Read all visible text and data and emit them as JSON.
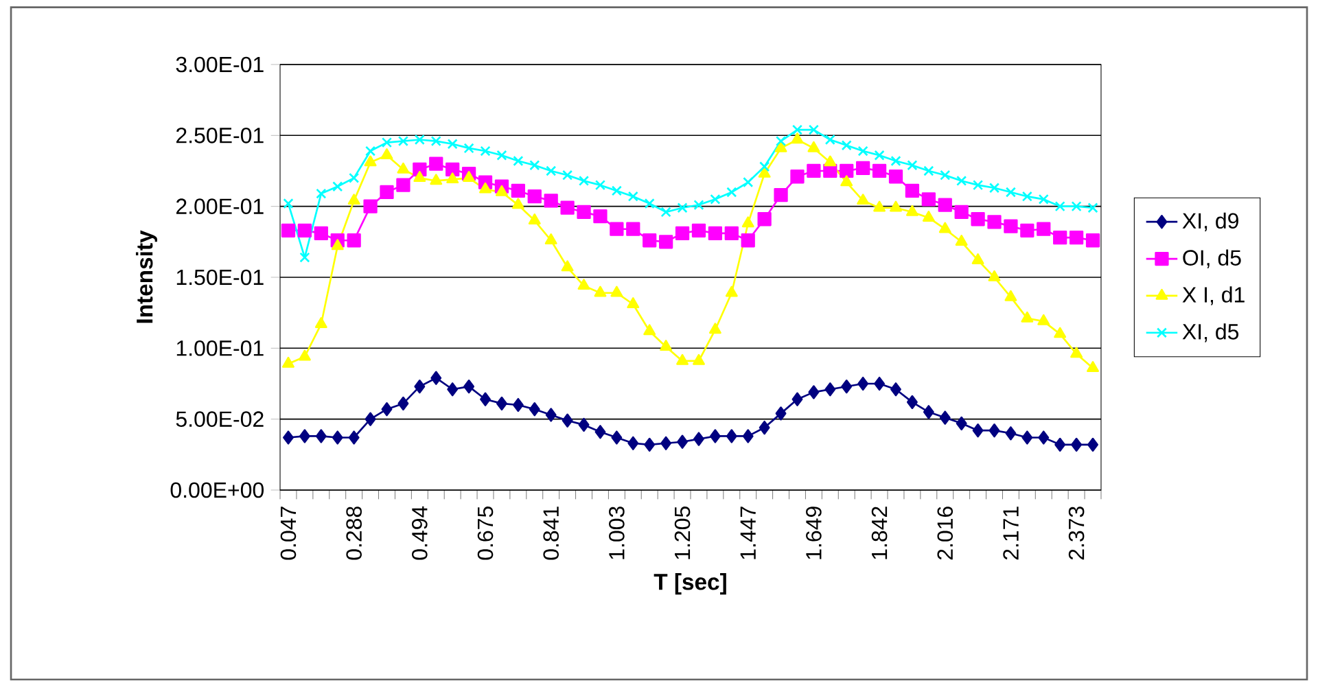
{
  "chart_data": {
    "type": "line",
    "xlabel": "T [sec]",
    "ylabel": "Intensity",
    "categories": [
      "0.047",
      null,
      null,
      null,
      "0.288",
      null,
      null,
      null,
      "0.494",
      null,
      null,
      null,
      "0.675",
      null,
      null,
      null,
      "0.841",
      null,
      null,
      null,
      "1.003",
      null,
      null,
      null,
      "1.205",
      null,
      null,
      null,
      "1.447",
      null,
      null,
      null,
      "1.649",
      null,
      null,
      null,
      "1.842",
      null,
      null,
      null,
      "2.016",
      null,
      null,
      null,
      "2.171",
      null,
      null,
      null,
      "2.373",
      null
    ],
    "series": [
      {
        "name": "XI, d9",
        "color": "#000080",
        "marker": "diamond",
        "values": [
          0.037,
          0.038,
          0.038,
          0.037,
          0.037,
          0.05,
          0.057,
          0.061,
          0.073,
          0.079,
          0.071,
          0.073,
          0.064,
          0.061,
          0.06,
          0.057,
          0.053,
          0.049,
          0.046,
          0.041,
          0.037,
          0.033,
          0.032,
          0.033,
          0.034,
          0.036,
          0.038,
          0.038,
          0.038,
          0.044,
          0.054,
          0.064,
          0.069,
          0.071,
          0.073,
          0.075,
          0.075,
          0.071,
          0.062,
          0.055,
          0.051,
          0.047,
          0.042,
          0.042,
          0.04,
          0.037,
          0.037,
          0.032,
          0.032,
          0.032
        ]
      },
      {
        "name": "OI, d5",
        "color": "#ff00ff",
        "marker": "square",
        "values": [
          0.183,
          0.183,
          0.181,
          0.176,
          0.176,
          0.2,
          0.21,
          0.215,
          0.226,
          0.23,
          0.226,
          0.223,
          0.217,
          0.214,
          0.211,
          0.207,
          0.204,
          0.199,
          0.196,
          0.193,
          0.184,
          0.184,
          0.176,
          0.175,
          0.181,
          0.183,
          0.181,
          0.181,
          0.176,
          0.191,
          0.208,
          0.221,
          0.225,
          0.225,
          0.225,
          0.227,
          0.225,
          0.221,
          0.211,
          0.205,
          0.201,
          0.196,
          0.191,
          0.189,
          0.186,
          0.183,
          0.184,
          0.178,
          0.178,
          0.176
        ]
      },
      {
        "name": "X I, d1",
        "color": "#ffff00",
        "marker": "triangle",
        "values": [
          0.089,
          0.094,
          0.117,
          0.172,
          0.204,
          0.231,
          0.236,
          0.226,
          0.22,
          0.218,
          0.219,
          0.22,
          0.212,
          0.21,
          0.201,
          0.19,
          0.176,
          0.157,
          0.144,
          0.139,
          0.139,
          0.131,
          0.112,
          0.101,
          0.091,
          0.091,
          0.113,
          0.139,
          0.188,
          0.223,
          0.241,
          0.247,
          0.241,
          0.231,
          0.217,
          0.204,
          0.199,
          0.199,
          0.196,
          0.192,
          0.184,
          0.175,
          0.162,
          0.15,
          0.136,
          0.121,
          0.119,
          0.11,
          0.096,
          0.086
        ]
      },
      {
        "name": "XI, d5",
        "color": "#00ffff",
        "marker": "cross",
        "values": [
          0.202,
          0.164,
          0.209,
          0.214,
          0.22,
          0.239,
          0.245,
          0.246,
          0.247,
          0.246,
          0.244,
          0.241,
          0.239,
          0.236,
          0.232,
          0.229,
          0.225,
          0.222,
          0.218,
          0.215,
          0.211,
          0.207,
          0.202,
          0.196,
          0.199,
          0.201,
          0.205,
          0.21,
          0.217,
          0.228,
          0.246,
          0.254,
          0.254,
          0.247,
          0.243,
          0.239,
          0.236,
          0.232,
          0.229,
          0.225,
          0.222,
          0.218,
          0.215,
          0.213,
          0.21,
          0.207,
          0.205,
          0.2,
          0.2,
          0.199
        ]
      }
    ],
    "ylim": [
      0,
      0.3
    ],
    "yticks": [
      {
        "value": 0,
        "label": "0.00E+00"
      },
      {
        "value": 0.05,
        "label": "5.00E-02"
      },
      {
        "value": 0.1,
        "label": "1.00E-01"
      },
      {
        "value": 0.15,
        "label": "1.50E-01"
      },
      {
        "value": 0.2,
        "label": "2.00E-01"
      },
      {
        "value": 0.25,
        "label": "2.50E-01"
      },
      {
        "value": 0.3,
        "label": "3.00E-01"
      }
    ],
    "grid": "y",
    "legend": "right",
    "line_style": "solid"
  }
}
